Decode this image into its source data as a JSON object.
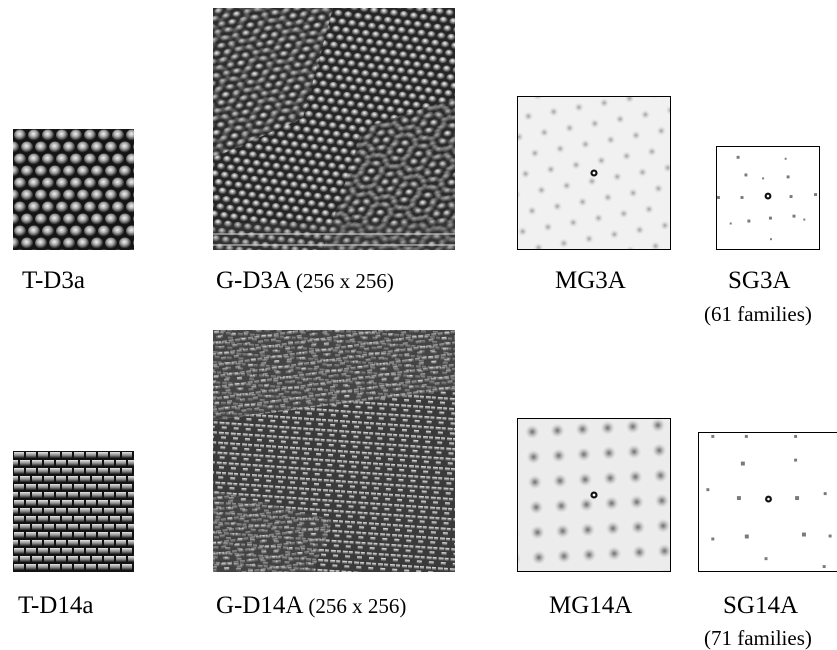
{
  "row1": {
    "texture_label": "T-D3a",
    "generated_label": "G-D3A",
    "generated_size": "(256 x 256)",
    "mg_label": "MG3A",
    "sg_label": "SG3A",
    "sg_families": "(61 families)"
  },
  "row2": {
    "texture_label": "T-D14a",
    "generated_label": "G-D14A",
    "generated_size": "(256 x 256)",
    "mg_label": "MG14A",
    "sg_label": "SG14A",
    "sg_families": "(71 families)"
  }
}
